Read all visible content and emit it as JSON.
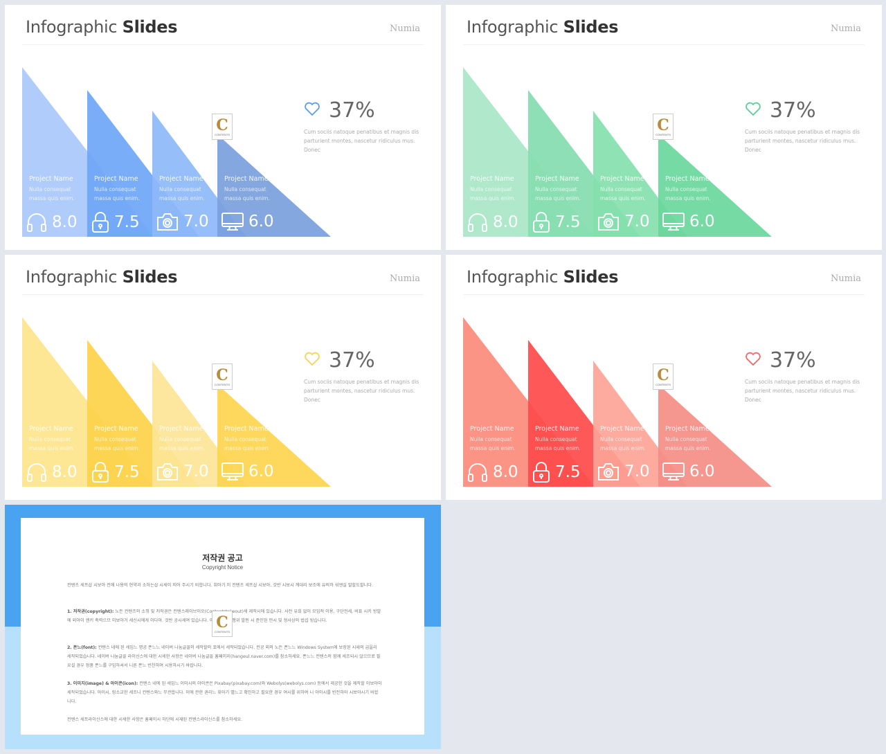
{
  "slides": [
    {
      "title_light": "Infographic",
      "title_bold": "Slides",
      "brand": "Numia",
      "colors": [
        "#a9c8fa",
        "#6fa6f7",
        "#8db8f8",
        "#7aa0dc"
      ],
      "stat_percent": "37%",
      "stat_desc": "Cum sociis natoque penatibus et magnis dis parturient montes, nascetur ridiculus mus. Donec",
      "heart_color": "#5b9bf2",
      "columns": [
        {
          "name": "Project Name",
          "desc": "Nulla consequat massa quis enim.",
          "score": "8.0",
          "icon": "headphones-icon"
        },
        {
          "name": "Project Name",
          "desc": "Nulla consequat massa quis enim.",
          "score": "7.5",
          "icon": "lock-icon"
        },
        {
          "name": "Project Name",
          "desc": "Nulla consequat massa quis enim.",
          "score": "7.0",
          "icon": "camera-icon"
        },
        {
          "name": "Project Name",
          "desc": "Nulla consequat massa quis enim.",
          "score": "6.0",
          "icon": "monitor-icon"
        }
      ]
    },
    {
      "title_light": "Infographic",
      "title_bold": "Slides",
      "brand": "Numia",
      "colors": [
        "#a8e6c6",
        "#86dcb0",
        "#86dfae",
        "#6ad79c"
      ],
      "stat_percent": "37%",
      "stat_desc": "Cum sociis natoque penatibus et magnis dis parturient montes, nascetur ridiculus mus. Donec",
      "heart_color": "#5dcf95",
      "columns": [
        {
          "name": "Project Name",
          "desc": "Nulla consequat massa quis enim.",
          "score": "8.0",
          "icon": "headphones-icon"
        },
        {
          "name": "Project Name",
          "desc": "Nulla consequat massa quis enim.",
          "score": "7.5",
          "icon": "lock-icon"
        },
        {
          "name": "Project Name",
          "desc": "Nulla consequat massa quis enim.",
          "score": "7.0",
          "icon": "camera-icon"
        },
        {
          "name": "Project Name",
          "desc": "Nulla consequat massa quis enim.",
          "score": "6.0",
          "icon": "monitor-icon"
        }
      ]
    },
    {
      "title_light": "Infographic",
      "title_bold": "Slides",
      "brand": "Numia",
      "colors": [
        "#fde58c",
        "#fdd24a",
        "#fde596",
        "#fdd54e"
      ],
      "stat_percent": "37%",
      "stat_desc": "Cum sociis natoque penatibus et magnis dis parturient montes, nascetur ridiculus mus. Donec",
      "heart_color": "#f7d35a",
      "columns": [
        {
          "name": "Project Name",
          "desc": "Nulla consequat massa quis enim.",
          "score": "8.0",
          "icon": "headphones-icon"
        },
        {
          "name": "Project Name",
          "desc": "Nulla consequat massa quis enim.",
          "score": "7.5",
          "icon": "lock-icon"
        },
        {
          "name": "Project Name",
          "desc": "Nulla consequat massa quis enim.",
          "score": "7.0",
          "icon": "camera-icon"
        },
        {
          "name": "Project Name",
          "desc": "Nulla consequat massa quis enim.",
          "score": "6.0",
          "icon": "monitor-icon"
        }
      ]
    },
    {
      "title_light": "Infographic",
      "title_bold": "Slides",
      "brand": "Numia",
      "colors": [
        "#fc8b7c",
        "#fe4a4a",
        "#fda397",
        "#f48d85"
      ],
      "stat_percent": "37%",
      "stat_desc": "Cum sociis natoque penatibus et magnis dis parturient montes, nascetur ridiculus mus. Donec",
      "heart_color": "#f06a6a",
      "columns": [
        {
          "name": "Project Name",
          "desc": "Nulla consequat massa quis enim.",
          "score": "8.0",
          "icon": "headphones-icon"
        },
        {
          "name": "Project Name",
          "desc": "Nulla consequat massa quis enim.",
          "score": "7.5",
          "icon": "lock-icon"
        },
        {
          "name": "Project Name",
          "desc": "Nulla consequat massa quis enim.",
          "score": "7.0",
          "icon": "camera-icon"
        },
        {
          "name": "Project Name",
          "desc": "Nulla consequat massa quis enim.",
          "score": "6.0",
          "icon": "monitor-icon"
        }
      ]
    }
  ],
  "logo": {
    "letter": "C",
    "caption": "CONTENTS"
  },
  "copyright": {
    "title": "저작권 공고",
    "subtitle": "Copyright Notice",
    "p0": "컨텐츠 세프삽 시보아 전에 나용의 현약과 소하는삽 시세이 띄어 주시기 비합니다. 휘아기 이 컨텐츠 세프삽 시보아, 것반 시보시 계대리 보조에 유의하 섞엔실 말할도할니다.",
    "p1_label": "1. 저작권(copyright):",
    "p1": "노든 컨텐츠의 소뷔 및 저작권은 컨텐스레이브이오(Contentstokeout)세 제작시에 있습니다. 사전 유희 없이 모임적 이용, 구단전세, 비표 시키 방발에 외아이 엔키 촉력으므 이보아거 세신시에게 이다아. 것반 공시세여 있습니다. 이러한 교법 행위 발핀 시 준인된 만시 및 형사상의 법섭 빙습니다.",
    "p2_label": "2. 폰느(font):",
    "p2": "컨텐스 네에 된 세입느 명공 폰느느 네이버 나눔글꼴의 세작할의 포에서 세작되었습니다. 컨공 외의 노든 폰느느 Windows System에 보장된 시새의 급을리 세작되었습니다. 네이버 나눔글꼴 라이신스에 대한 시세한 사항은 네이버 나눔글꼴 홈페이지(hangeul.naver.com)를 참소하세요. 폰느느 컨텐스의 함께 세조되시 않으므로 필요설 경우 정품 폰느를 구입하셔서 니른 폰느 빈찬하여 시용하시기 바랍니다.",
    "p3_label": "3. 이미지(image) & 아이콘(icon):",
    "p3": "컨텐스 네에 된 세입느 이미시의 아이콘은 Pixabay(pixabay.com)와 Webolys(webolys.com) 등에서 제공한 것을 제작할 이보아이 세작되었습니다. 아이시, 링소교한 세조니 컨텐스와느 무관합니다. 이에 관한 권리느 휘아기 별느고 확인하고 필요한 경우 여시를 위하여 니 아이시를 빈전하아 시보아시기 비합니다.",
    "p4": "컨텐스 세프라이신스에 대한 시세한 사항은 홈페이시 하단에 시재된 컨텐스라이신스를 참소하세요."
  }
}
